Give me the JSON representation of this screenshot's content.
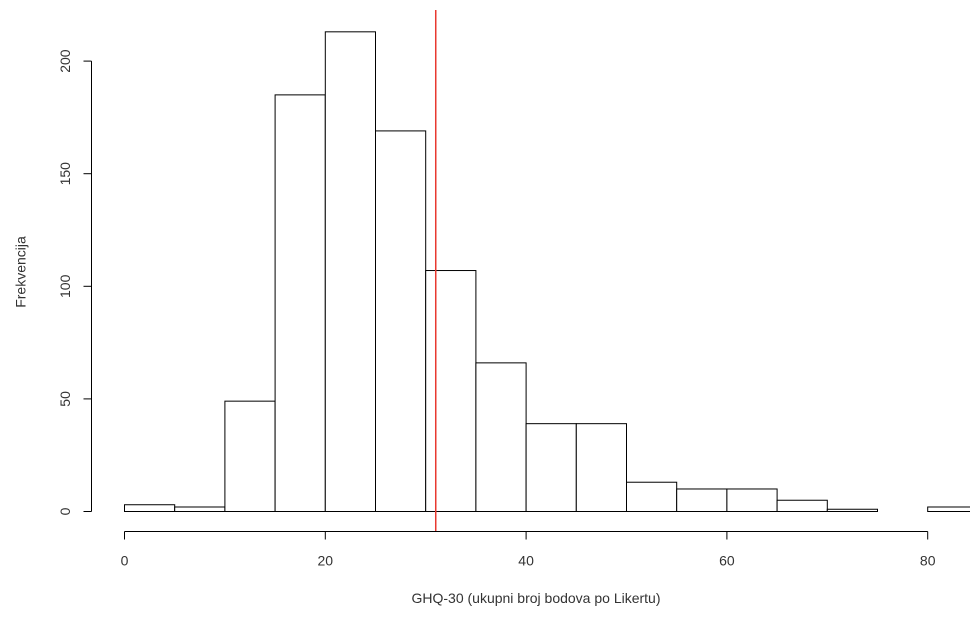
{
  "chart_data": {
    "type": "bar",
    "title": "",
    "xlabel": "GHQ-30  (ukupni broj bodova po Likertu)",
    "ylabel": "Frekvencija",
    "bins": [
      {
        "start": 0,
        "end": 5,
        "count": 3
      },
      {
        "start": 5,
        "end": 10,
        "count": 2
      },
      {
        "start": 10,
        "end": 15,
        "count": 49
      },
      {
        "start": 15,
        "end": 20,
        "count": 185
      },
      {
        "start": 20,
        "end": 25,
        "count": 213
      },
      {
        "start": 25,
        "end": 30,
        "count": 169
      },
      {
        "start": 30,
        "end": 35,
        "count": 107
      },
      {
        "start": 35,
        "end": 40,
        "count": 66
      },
      {
        "start": 40,
        "end": 45,
        "count": 39
      },
      {
        "start": 45,
        "end": 50,
        "count": 39
      },
      {
        "start": 50,
        "end": 55,
        "count": 13
      },
      {
        "start": 55,
        "end": 60,
        "count": 10
      },
      {
        "start": 60,
        "end": 65,
        "count": 10
      },
      {
        "start": 65,
        "end": 70,
        "count": 5
      },
      {
        "start": 70,
        "end": 75,
        "count": 1
      },
      {
        "start": 75,
        "end": 80,
        "count": 0
      },
      {
        "start": 80,
        "end": 85,
        "count": 2
      }
    ],
    "x_ticks": [
      0,
      20,
      40,
      60,
      80
    ],
    "y_ticks": [
      0,
      50,
      100,
      150,
      200
    ],
    "xlim": [
      0,
      85
    ],
    "ylim": [
      0,
      223
    ],
    "reference_line": {
      "x": 31,
      "color": "#e8392f"
    },
    "grid": false
  }
}
